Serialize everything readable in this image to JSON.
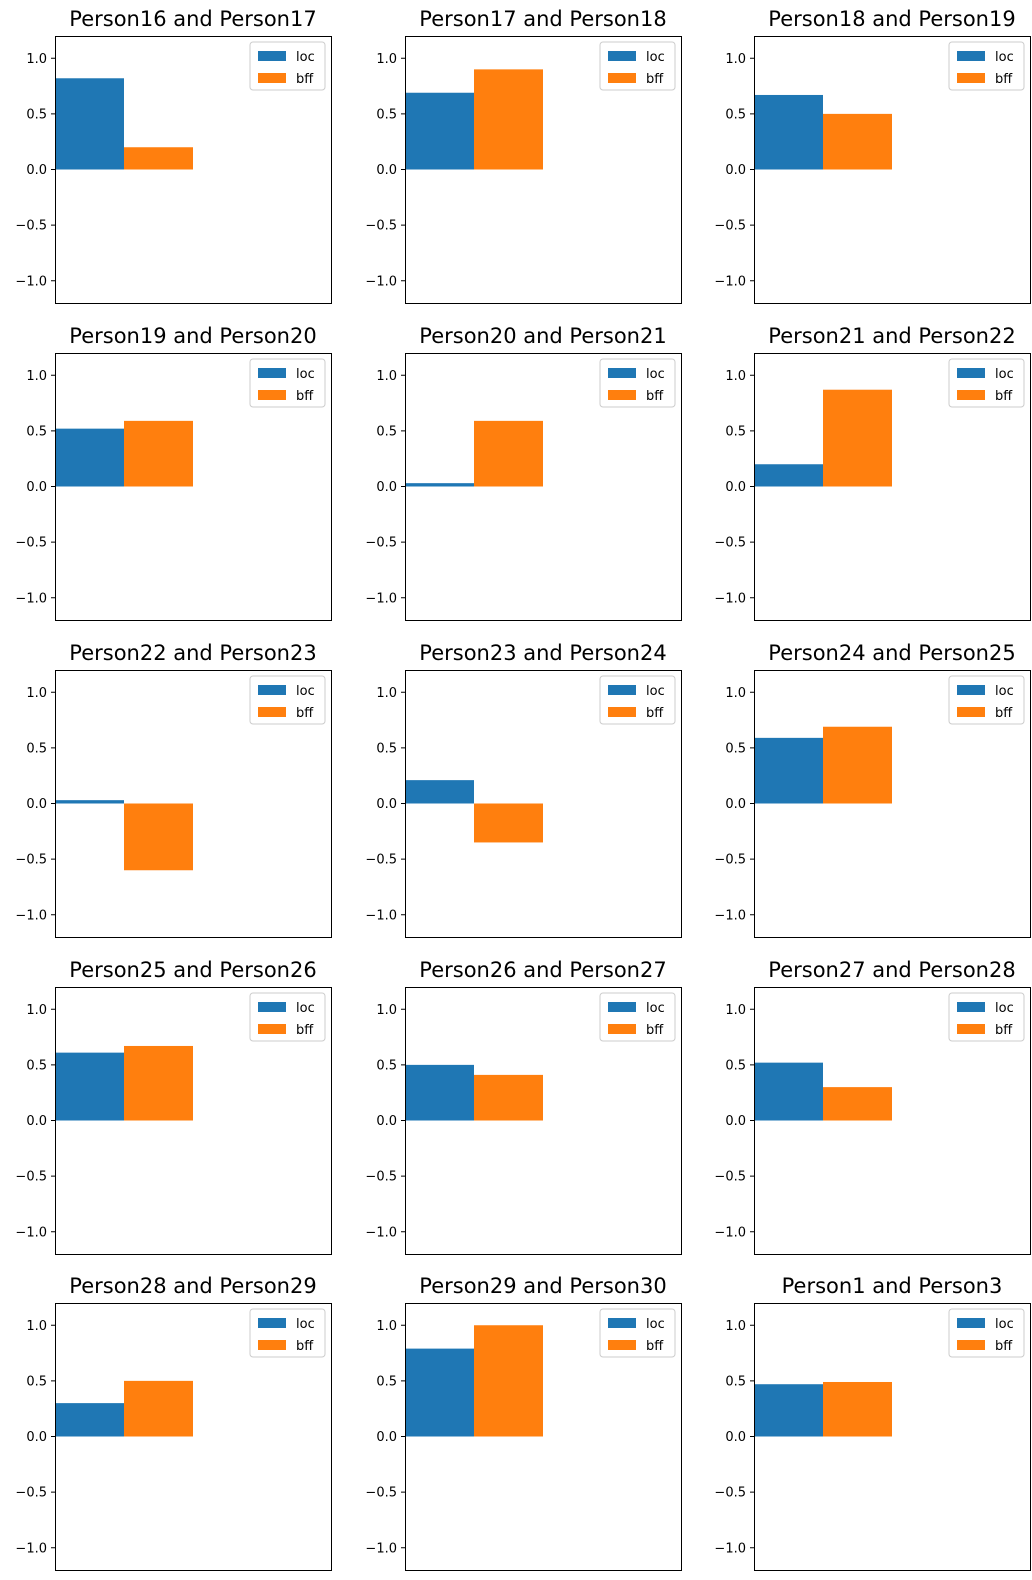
{
  "colors": {
    "loc": "#1f77b4",
    "bff": "#ff7f0e"
  },
  "chart_data": [
    {
      "type": "bar",
      "title": "Person16 and Person17",
      "categories": [
        "loc",
        "bff"
      ],
      "values": [
        0.82,
        0.2
      ],
      "ylim": [
        -1.2,
        1.2
      ],
      "yticks": [
        "1.0",
        "0.5",
        "0.0",
        "−0.5",
        "−1.0"
      ],
      "legend": [
        "loc",
        "bff"
      ],
      "legend_position": "top-right"
    },
    {
      "type": "bar",
      "title": "Person17 and Person18",
      "categories": [
        "loc",
        "bff"
      ],
      "values": [
        0.69,
        0.9
      ],
      "ylim": [
        -1.2,
        1.2
      ],
      "yticks": [
        "1.0",
        "0.5",
        "0.0",
        "−0.5",
        "−1.0"
      ],
      "legend": [
        "loc",
        "bff"
      ],
      "legend_position": "top-right"
    },
    {
      "type": "bar",
      "title": "Person18 and Person19",
      "categories": [
        "loc",
        "bff"
      ],
      "values": [
        0.67,
        0.5
      ],
      "ylim": [
        -1.2,
        1.2
      ],
      "yticks": [
        "1.0",
        "0.5",
        "0.0",
        "−0.5",
        "−1.0"
      ],
      "legend": [
        "loc",
        "bff"
      ],
      "legend_position": "top-right"
    },
    {
      "type": "bar",
      "title": "Person19 and Person20",
      "categories": [
        "loc",
        "bff"
      ],
      "values": [
        0.52,
        0.59
      ],
      "ylim": [
        -1.2,
        1.2
      ],
      "yticks": [
        "1.0",
        "0.5",
        "0.0",
        "−0.5",
        "−1.0"
      ],
      "legend": [
        "loc",
        "bff"
      ],
      "legend_position": "top-right"
    },
    {
      "type": "bar",
      "title": "Person20 and Person21",
      "categories": [
        "loc",
        "bff"
      ],
      "values": [
        0.03,
        0.59
      ],
      "ylim": [
        -1.2,
        1.2
      ],
      "yticks": [
        "1.0",
        "0.5",
        "0.0",
        "−0.5",
        "−1.0"
      ],
      "legend": [
        "loc",
        "bff"
      ],
      "legend_position": "top-right"
    },
    {
      "type": "bar",
      "title": "Person21 and Person22",
      "categories": [
        "loc",
        "bff"
      ],
      "values": [
        0.2,
        0.87
      ],
      "ylim": [
        -1.2,
        1.2
      ],
      "yticks": [
        "1.0",
        "0.5",
        "0.0",
        "−0.5",
        "−1.0"
      ],
      "legend": [
        "loc",
        "bff"
      ],
      "legend_position": "top-right"
    },
    {
      "type": "bar",
      "title": "Person22 and Person23",
      "categories": [
        "loc",
        "bff"
      ],
      "values": [
        0.03,
        -0.6
      ],
      "ylim": [
        -1.2,
        1.2
      ],
      "yticks": [
        "1.0",
        "0.5",
        "0.0",
        "−0.5",
        "−1.0"
      ],
      "legend": [
        "loc",
        "bff"
      ],
      "legend_position": "top-right"
    },
    {
      "type": "bar",
      "title": "Person23 and Person24",
      "categories": [
        "loc",
        "bff"
      ],
      "values": [
        0.21,
        -0.35
      ],
      "ylim": [
        -1.2,
        1.2
      ],
      "yticks": [
        "1.0",
        "0.5",
        "0.0",
        "−0.5",
        "−1.0"
      ],
      "legend": [
        "loc",
        "bff"
      ],
      "legend_position": "top-right"
    },
    {
      "type": "bar",
      "title": "Person24 and Person25",
      "categories": [
        "loc",
        "bff"
      ],
      "values": [
        0.59,
        0.69
      ],
      "ylim": [
        -1.2,
        1.2
      ],
      "yticks": [
        "1.0",
        "0.5",
        "0.0",
        "−0.5",
        "−1.0"
      ],
      "legend": [
        "loc",
        "bff"
      ],
      "legend_position": "top-right"
    },
    {
      "type": "bar",
      "title": "Person25 and Person26",
      "categories": [
        "loc",
        "bff"
      ],
      "values": [
        0.61,
        0.67
      ],
      "ylim": [
        -1.2,
        1.2
      ],
      "yticks": [
        "1.0",
        "0.5",
        "0.0",
        "−0.5",
        "−1.0"
      ],
      "legend": [
        "loc",
        "bff"
      ],
      "legend_position": "top-right"
    },
    {
      "type": "bar",
      "title": "Person26 and Person27",
      "categories": [
        "loc",
        "bff"
      ],
      "values": [
        0.5,
        0.41
      ],
      "ylim": [
        -1.2,
        1.2
      ],
      "yticks": [
        "1.0",
        "0.5",
        "0.0",
        "−0.5",
        "−1.0"
      ],
      "legend": [
        "loc",
        "bff"
      ],
      "legend_position": "top-right"
    },
    {
      "type": "bar",
      "title": "Person27 and Person28",
      "categories": [
        "loc",
        "bff"
      ],
      "values": [
        0.52,
        0.3
      ],
      "ylim": [
        -1.2,
        1.2
      ],
      "yticks": [
        "1.0",
        "0.5",
        "0.0",
        "−0.5",
        "−1.0"
      ],
      "legend": [
        "loc",
        "bff"
      ],
      "legend_position": "top-right"
    },
    {
      "type": "bar",
      "title": "Person28 and Person29",
      "categories": [
        "loc",
        "bff"
      ],
      "values": [
        0.3,
        0.5
      ],
      "ylim": [
        -1.2,
        1.2
      ],
      "yticks": [
        "1.0",
        "0.5",
        "0.0",
        "−0.5",
        "−1.0"
      ],
      "legend": [
        "loc",
        "bff"
      ],
      "legend_position": "top-right"
    },
    {
      "type": "bar",
      "title": "Person29 and Person30",
      "categories": [
        "loc",
        "bff"
      ],
      "values": [
        0.79,
        1.0
      ],
      "ylim": [
        -1.2,
        1.2
      ],
      "yticks": [
        "1.0",
        "0.5",
        "0.0",
        "−0.5",
        "−1.0"
      ],
      "legend": [
        "loc",
        "bff"
      ],
      "legend_position": "top-right"
    },
    {
      "type": "bar",
      "title": "Person1 and Person3",
      "categories": [
        "loc",
        "bff"
      ],
      "values": [
        0.47,
        0.49
      ],
      "ylim": [
        -1.2,
        1.2
      ],
      "yticks": [
        "1.0",
        "0.5",
        "0.0",
        "−0.5",
        "−1.0"
      ],
      "legend": [
        "loc",
        "bff"
      ],
      "legend_position": "top-right"
    }
  ]
}
